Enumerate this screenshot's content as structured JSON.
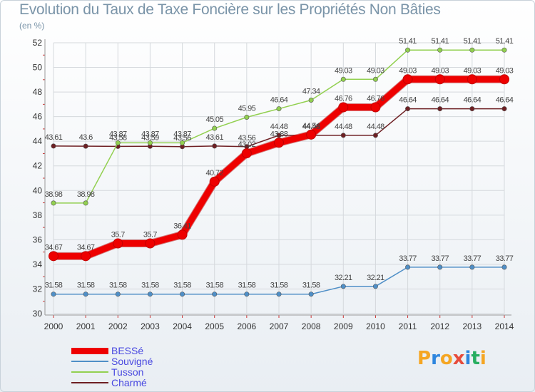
{
  "chart_data": {
    "type": "line",
    "title": "Evolution du Taux de Taxe Foncière sur les Propriétés Non Bâties",
    "subtitle": "(en %)",
    "x": [
      2000,
      2001,
      2002,
      2003,
      2004,
      2005,
      2006,
      2007,
      2008,
      2009,
      2010,
      2011,
      2012,
      2013,
      2014
    ],
    "x_tick_labels": [
      "2000",
      "2001",
      "2002",
      "2003",
      "2004",
      "2005",
      "2006",
      "2007",
      "2008",
      "2009",
      "2010",
      "2011",
      "2012",
      "2013",
      "2014"
    ],
    "ylim": [
      30,
      52
    ],
    "y_ticks": [
      30,
      32,
      34,
      36,
      38,
      40,
      42,
      44,
      46,
      48,
      50,
      52
    ],
    "grid": true,
    "legend_position": "bottom-left",
    "series": [
      {
        "name": "Charmé",
        "color": "#6e1f23",
        "width": 1.5,
        "values": [
          43.61,
          43.6,
          43.58,
          43.59,
          43.56,
          43.61,
          43.56,
          44.48,
          44.48,
          44.48,
          44.48,
          46.64,
          46.64,
          46.64,
          46.64
        ],
        "labels": [
          "43.61",
          "43.6",
          "43.58",
          "43.59",
          "43.56",
          "43.61",
          "43.56",
          "44.48",
          "44.48",
          "44.48",
          "44.48",
          "46.64",
          "46.64",
          "46.64",
          "46.64"
        ]
      },
      {
        "name": "Tusson",
        "color": "#92d050",
        "width": 1.5,
        "values": [
          38.98,
          38.98,
          43.87,
          43.87,
          43.87,
          45.05,
          45.95,
          46.64,
          47.34,
          49.03,
          49.03,
          51.41,
          51.41,
          51.41,
          51.41
        ],
        "labels": [
          "38.98",
          "38.98",
          "43.87",
          "43.87",
          "43.87",
          "45.05",
          "45.95",
          "46.64",
          "47.34",
          "49.03",
          "49.03",
          "51.41",
          "51.41",
          "51.41",
          "51.41"
        ]
      },
      {
        "name": "Souvigné",
        "color": "#4f8fc7",
        "width": 1.5,
        "values": [
          31.58,
          31.58,
          31.58,
          31.58,
          31.58,
          31.58,
          31.58,
          31.58,
          31.58,
          32.21,
          32.21,
          33.77,
          33.77,
          33.77,
          33.77
        ],
        "labels": [
          "31.58",
          "31.58",
          "31.58",
          "31.58",
          "31.58",
          "31.58",
          "31.58",
          "31.58",
          "31.58",
          "32.21",
          "32.21",
          "33.77",
          "33.77",
          "33.77",
          "33.77"
        ]
      },
      {
        "name": "BESSé",
        "color": "#ee0000",
        "width": 9,
        "values": [
          34.67,
          34.67,
          35.7,
          35.7,
          36.41,
          40.72,
          43.02,
          43.88,
          44.54,
          46.76,
          46.76,
          49.03,
          49.03,
          49.03,
          49.03
        ],
        "labels": [
          "34.67",
          "34.67",
          "35.7",
          "35.7",
          "36.41",
          "40.72",
          "43.02",
          "43.88",
          "44.54",
          "46.76",
          "46.76",
          "49.03",
          "49.03",
          "49.03",
          "49.03"
        ]
      }
    ],
    "legend_order": [
      "BESSé",
      "Souvigné",
      "Tusson",
      "Charmé"
    ]
  },
  "logo": {
    "text": "Proxiti",
    "colors": [
      "#f5a623",
      "#2e86de",
      "#f5a623",
      "#e74c3c",
      "#2e86de",
      "#27ae60",
      "#f5a623"
    ]
  }
}
